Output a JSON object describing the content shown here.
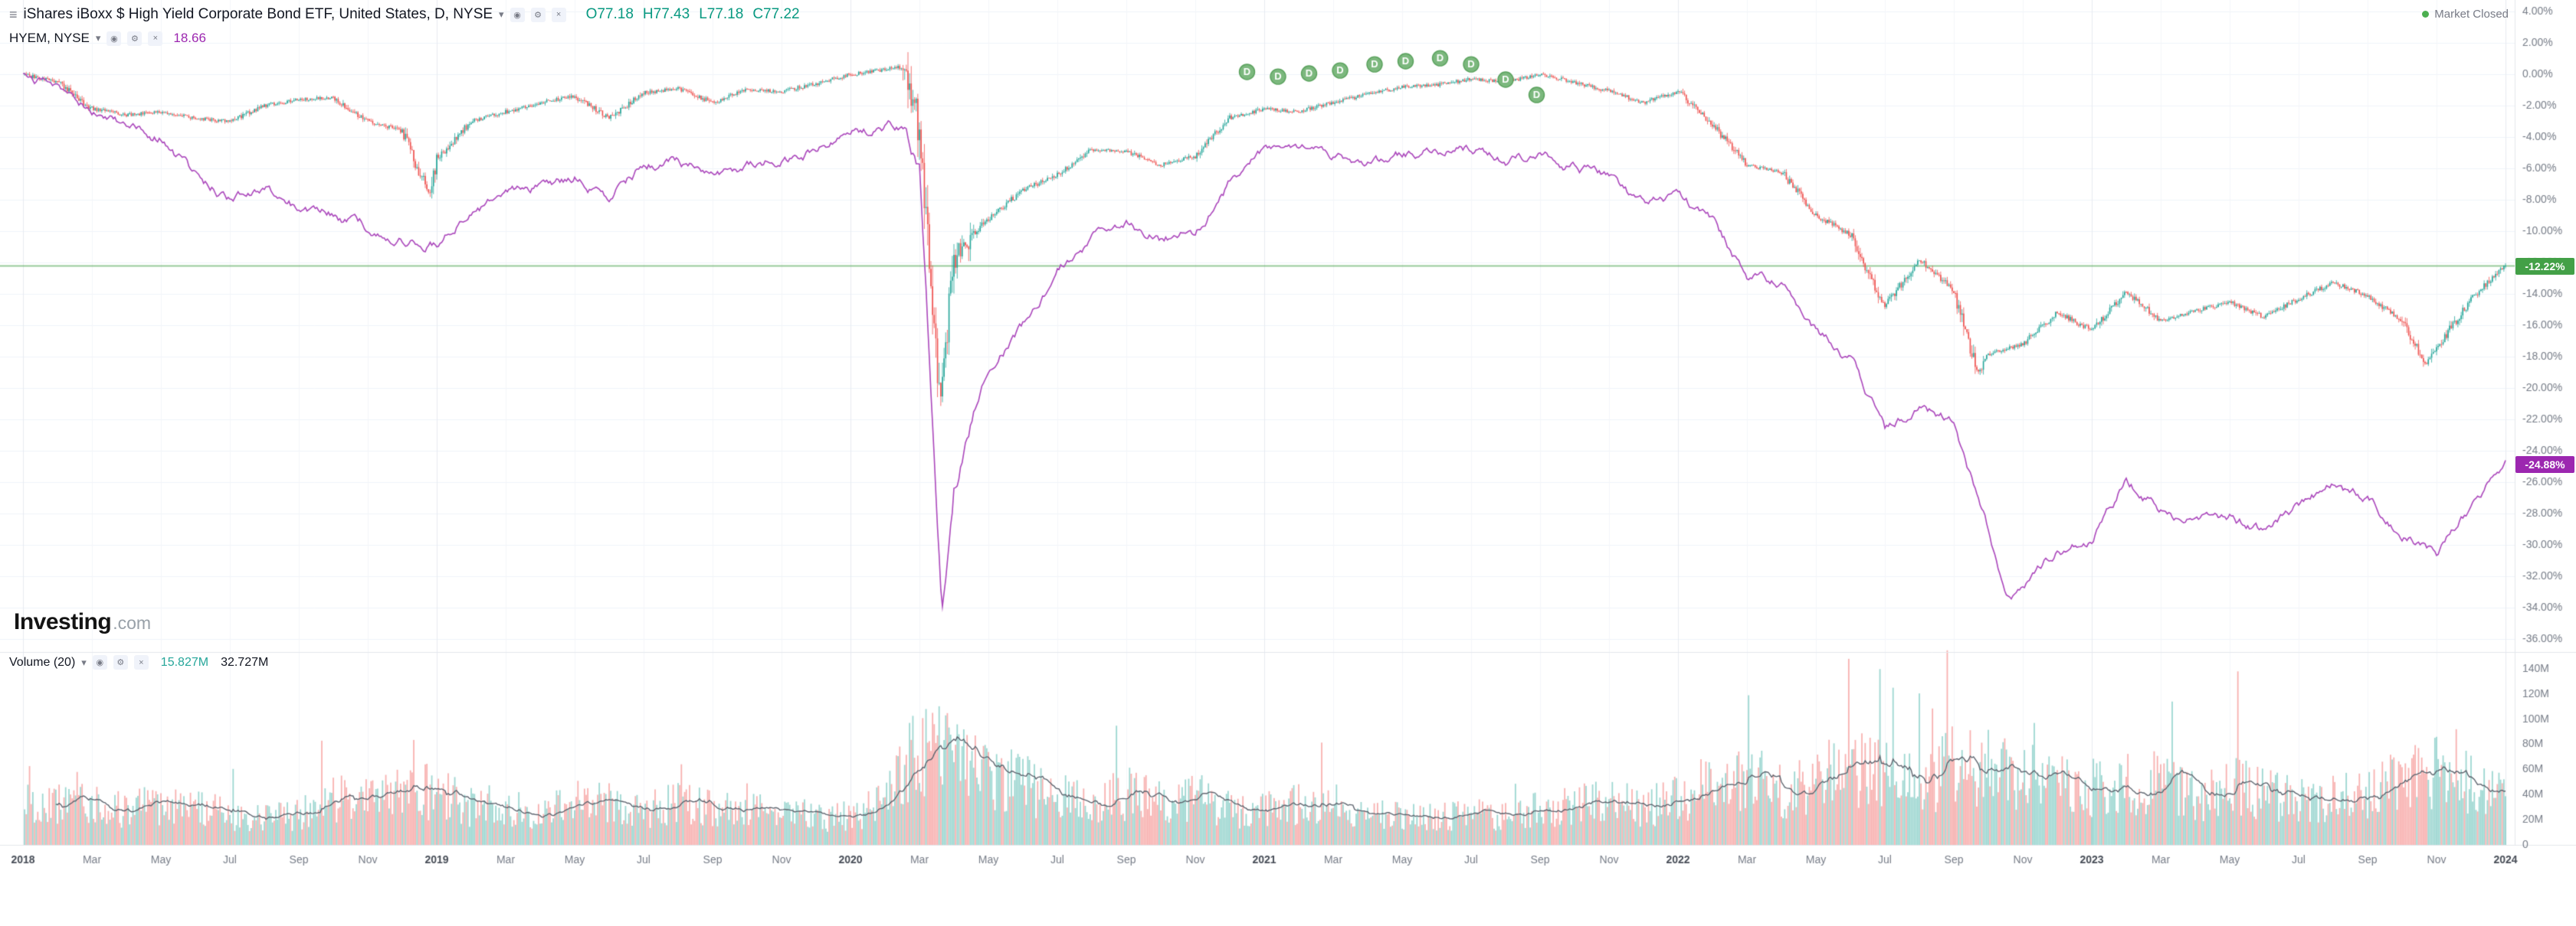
{
  "header": {
    "symbol_title": "iShares iBoxx $ High Yield Corporate Bond ETF, United States, D, NYSE",
    "ohlc": {
      "open": "O77.18",
      "high": "H77.43",
      "low": "L77.18",
      "close": "C77.22"
    },
    "compare": {
      "label": "HYEM, NYSE",
      "value": "18.66"
    },
    "market_status": "Market Closed"
  },
  "logo": {
    "bold": "Investing",
    "light": ".com"
  },
  "volume_legend": {
    "label": "Volume (20)",
    "value1": "15.827M",
    "value2": "32.727M"
  },
  "price_labels": {
    "current": "-12.22%",
    "compare": "-24.88%"
  },
  "icons": {
    "menu": "≡",
    "chevron_down": "▾",
    "eye": "◉",
    "gear": "⚙",
    "close": "×"
  },
  "colors": {
    "up": "#26a69a",
    "down": "#ef5350",
    "ohlc_text": "#089981",
    "compare_line": "#ab47bc",
    "compare_value": "#9c27b0",
    "current_line": "rgba(67,160,71,0.55)",
    "current_label_bg": "#43a047",
    "compare_label_bg": "#9c27b0",
    "vol_up": "rgba(38,166,154,0.45)",
    "vol_down": "rgba(239,83,80,0.45)",
    "vol_ma": "#5f6670",
    "vol_value1": "#26a69a",
    "vol_value2": "#131722",
    "grid": "#f0f3fa",
    "grid_minor": "#f4f6fa",
    "grid_year": "#e8ebf1",
    "axis_text": "#787e89",
    "axis_text_major": "#474d57",
    "divider": "#e4e7ec",
    "marker_fill": "#7cb87e",
    "marker_stroke": "#57a05a",
    "marker_text": "#ffffff",
    "market_dot": "#4caf50"
  },
  "price_axis": {
    "ticks": [
      {
        "v": 4,
        "label": "4.00%"
      },
      {
        "v": 2,
        "label": "2.00%"
      },
      {
        "v": 0,
        "label": "0.00%"
      },
      {
        "v": -2,
        "label": "-2.00%"
      },
      {
        "v": -4,
        "label": "-4.00%"
      },
      {
        "v": -6,
        "label": "-6.00%"
      },
      {
        "v": -8,
        "label": "-8.00%"
      },
      {
        "v": -10,
        "label": "-10.00%"
      },
      {
        "v": -12,
        "label": "-12.00%"
      },
      {
        "v": -14,
        "label": "-14.00%"
      },
      {
        "v": -16,
        "label": "-16.00%"
      },
      {
        "v": -18,
        "label": "-18.00%"
      },
      {
        "v": -20,
        "label": "-20.00%"
      },
      {
        "v": -22,
        "label": "-22.00%"
      },
      {
        "v": -24,
        "label": "-24.00%"
      },
      {
        "v": -26,
        "label": "-26.00%"
      },
      {
        "v": -28,
        "label": "-28.00%"
      },
      {
        "v": -30,
        "label": "-30.00%"
      },
      {
        "v": -32,
        "label": "-32.00%"
      },
      {
        "v": -34,
        "label": "-34.00%"
      },
      {
        "v": -36,
        "label": "-36.00%"
      }
    ]
  },
  "volume_axis": {
    "ticks": [
      {
        "v": 140,
        "label": "140M"
      },
      {
        "v": 120,
        "label": "120M"
      },
      {
        "v": 100,
        "label": "100M"
      },
      {
        "v": 80,
        "label": "80M"
      },
      {
        "v": 60,
        "label": "60M"
      },
      {
        "v": 40,
        "label": "40M"
      },
      {
        "v": 20,
        "label": "20M"
      },
      {
        "v": 0,
        "label": "0"
      }
    ]
  },
  "time_axis": {
    "labels": [
      {
        "text": "2018",
        "month": 0,
        "major": true
      },
      {
        "text": "Mar",
        "month": 2
      },
      {
        "text": "May",
        "month": 4
      },
      {
        "text": "Jul",
        "month": 6
      },
      {
        "text": "Sep",
        "month": 8
      },
      {
        "text": "Nov",
        "month": 10
      },
      {
        "text": "2019",
        "month": 12,
        "major": true
      },
      {
        "text": "Mar",
        "month": 14
      },
      {
        "text": "May",
        "month": 16
      },
      {
        "text": "Jul",
        "month": 18
      },
      {
        "text": "Sep",
        "month": 20
      },
      {
        "text": "Nov",
        "month": 22
      },
      {
        "text": "2020",
        "month": 24,
        "major": true
      },
      {
        "text": "Mar",
        "month": 26
      },
      {
        "text": "May",
        "month": 28
      },
      {
        "text": "Jul",
        "month": 30
      },
      {
        "text": "Sep",
        "month": 32
      },
      {
        "text": "Nov",
        "month": 34
      },
      {
        "text": "2021",
        "month": 36,
        "major": true
      },
      {
        "text": "Mar",
        "month": 38
      },
      {
        "text": "May",
        "month": 40
      },
      {
        "text": "Jul",
        "month": 42
      },
      {
        "text": "Sep",
        "month": 44
      },
      {
        "text": "Nov",
        "month": 46
      },
      {
        "text": "2022",
        "month": 48,
        "major": true
      },
      {
        "text": "Mar",
        "month": 50
      },
      {
        "text": "May",
        "month": 52
      },
      {
        "text": "Jul",
        "month": 54
      },
      {
        "text": "Sep",
        "month": 56
      },
      {
        "text": "Nov",
        "month": 58
      },
      {
        "text": "2023",
        "month": 60,
        "major": true
      },
      {
        "text": "Mar",
        "month": 62
      },
      {
        "text": "May",
        "month": 64
      },
      {
        "text": "Jul",
        "month": 66
      },
      {
        "text": "Sep",
        "month": 68
      },
      {
        "text": "Nov",
        "month": 70
      },
      {
        "text": "2024",
        "month": 72,
        "major": true
      }
    ]
  },
  "dividend_markers": {
    "glyph": "D",
    "months": [
      35.5,
      36.4,
      37.3,
      38.2,
      39.2,
      40.1,
      41.1,
      42.0,
      43.0,
      43.9
    ],
    "pct": [
      0.15,
      -0.15,
      0.05,
      0.24,
      0.63,
      0.83,
      1.02,
      0.63,
      -0.34,
      -1.32
    ]
  },
  "chart_data": {
    "type": "mixed",
    "subtype": [
      "candlestick",
      "line",
      "volume-bars"
    ],
    "x_start_month": "2018-01",
    "x_end_month": "2024-01",
    "months_span": 72,
    "y_unit": "percent_change_since_start",
    "ylim": [
      -36,
      4
    ],
    "series": [
      {
        "name": "iShares iBoxx $ High Yield Corporate Bond ETF (candles)",
        "display": "candlestick",
        "last_value_pct": -12.22,
        "values_pct_monthly": [
          0.0,
          -0.5,
          -2.2,
          -2.6,
          -2.4,
          -2.8,
          -3.0,
          -2.0,
          -1.6,
          -1.5,
          -3.0,
          -3.6,
          -5.4,
          -3.0,
          -2.4,
          -1.8,
          -1.4,
          -2.8,
          -1.2,
          -0.9,
          -1.8,
          -1.0,
          -1.1,
          -0.6,
          0.0,
          0.3,
          -3.5,
          -11.5,
          -9.2,
          -7.4,
          -6.4,
          -4.8,
          -4.9,
          -5.8,
          -5.2,
          -2.8,
          -2.2,
          -2.4,
          -1.8,
          -1.3,
          -0.8,
          -0.7,
          -0.3,
          -0.5,
          0.0,
          -0.5,
          -1.1,
          -1.8,
          -1.1,
          -3.2,
          -5.8,
          -6.2,
          -9.0,
          -10.2,
          -14.8,
          -11.8,
          -13.8,
          -17.8,
          -17.2,
          -15.2,
          -16.3,
          -13.9,
          -15.7,
          -15.1,
          -14.5,
          -15.5,
          -14.3,
          -13.3,
          -14.1,
          -15.7,
          -17.5,
          -14.3,
          -12.22
        ],
        "extra_points": [
          [
            11.8,
            -7.8
          ],
          [
            25.6,
            0.5
          ],
          [
            26.6,
            -20.8
          ],
          [
            56.7,
            -19.0
          ],
          [
            69.7,
            -18.6
          ]
        ]
      },
      {
        "name": "HYEM (compare line)",
        "display": "line",
        "last_value_pct": -24.88,
        "values_pct_monthly": [
          0.0,
          -0.8,
          -2.5,
          -3.5,
          -4.0,
          -6.5,
          -8.0,
          -7.0,
          -8.5,
          -9.0,
          -9.8,
          -10.5,
          -10.8,
          -8.8,
          -7.8,
          -7.2,
          -6.6,
          -7.8,
          -5.8,
          -5.4,
          -6.6,
          -5.8,
          -5.4,
          -4.8,
          -3.8,
          -3.4,
          -6.0,
          -26.0,
          -19.0,
          -16.0,
          -12.5,
          -10.5,
          -9.5,
          -10.5,
          -10.2,
          -7.0,
          -5.0,
          -4.8,
          -5.4,
          -5.8,
          -5.2,
          -4.9,
          -4.7,
          -5.3,
          -5.1,
          -5.9,
          -6.6,
          -8.4,
          -7.6,
          -9.6,
          -12.8,
          -13.2,
          -16.2,
          -18.2,
          -22.8,
          -21.2,
          -22.2,
          -29.0,
          -33.0,
          -30.2,
          -29.8,
          -25.8,
          -27.8,
          -28.6,
          -28.2,
          -29.2,
          -27.6,
          -26.2,
          -27.2,
          -29.2,
          -30.5,
          -27.5,
          -24.88
        ],
        "extra_points": [
          [
            25.6,
            -3.2
          ],
          [
            26.65,
            -33.8
          ],
          [
            57.5,
            -33.5
          ]
        ]
      }
    ],
    "volume": {
      "period": 20,
      "axis_max_millions": 140,
      "last_value": "15.827M",
      "ma_value": "32.727M",
      "monthly_avg_millions": [
        30,
        30,
        32,
        26,
        30,
        28,
        22,
        20,
        22,
        34,
        32,
        42,
        38,
        28,
        30,
        24,
        34,
        30,
        24,
        34,
        26,
        26,
        22,
        20,
        22,
        30,
        78,
        62,
        50,
        46,
        36,
        30,
        38,
        34,
        36,
        26,
        26,
        30,
        30,
        22,
        22,
        20,
        22,
        22,
        26,
        28,
        34,
        26,
        36,
        44,
        48,
        40,
        48,
        56,
        52,
        44,
        60,
        56,
        52,
        44,
        42,
        40,
        52,
        34,
        42,
        40,
        32,
        34,
        40,
        46,
        56,
        44,
        33
      ],
      "spikes": [
        [
          1.5,
          58
        ],
        [
          11.6,
          64
        ],
        [
          26.4,
          96
        ],
        [
          26.7,
          103
        ],
        [
          27.1,
          88
        ],
        [
          50.0,
          119
        ],
        [
          54.2,
          125
        ],
        [
          58.3,
          97
        ],
        [
          62.3,
          114
        ],
        [
          64.2,
          138
        ],
        [
          70.5,
          92
        ]
      ]
    }
  }
}
